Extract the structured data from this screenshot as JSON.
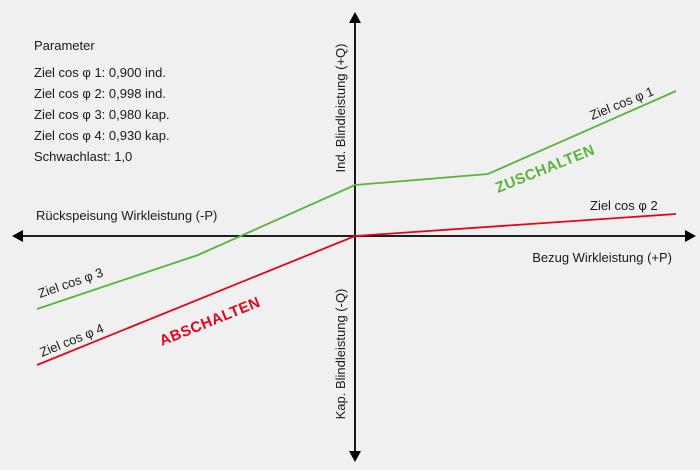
{
  "parameters": {
    "heading": "Parameter",
    "lines": [
      "Ziel cos φ 1: 0,900 ind.",
      "Ziel cos φ 2: 0,998 ind.",
      "Ziel cos φ 3: 0,980 kap.",
      "Ziel cos φ 4: 0,930 kap.",
      "Schwachlast: 1,0"
    ]
  },
  "axes": {
    "left": "Rückspeisung Wirkleistung (-P)",
    "right": "Bezug Wirkleistung (+P)",
    "up": "Ind. Blindleistung (+Q)",
    "down": "Kap. Blindleistung (-Q)"
  },
  "curves": {
    "cos1": "Ziel cos φ 1",
    "cos2": "Ziel cos φ 2",
    "cos3": "Ziel cos φ 3",
    "cos4": "Ziel cos φ 4"
  },
  "actions": {
    "on": "ZUSCHALTEN",
    "off": "ABSCHALTEN"
  },
  "colors": {
    "background": "#f0f0f0",
    "axis": "#000000",
    "switch_on": "#5ab33a",
    "switch_off": "#e3061a"
  }
}
